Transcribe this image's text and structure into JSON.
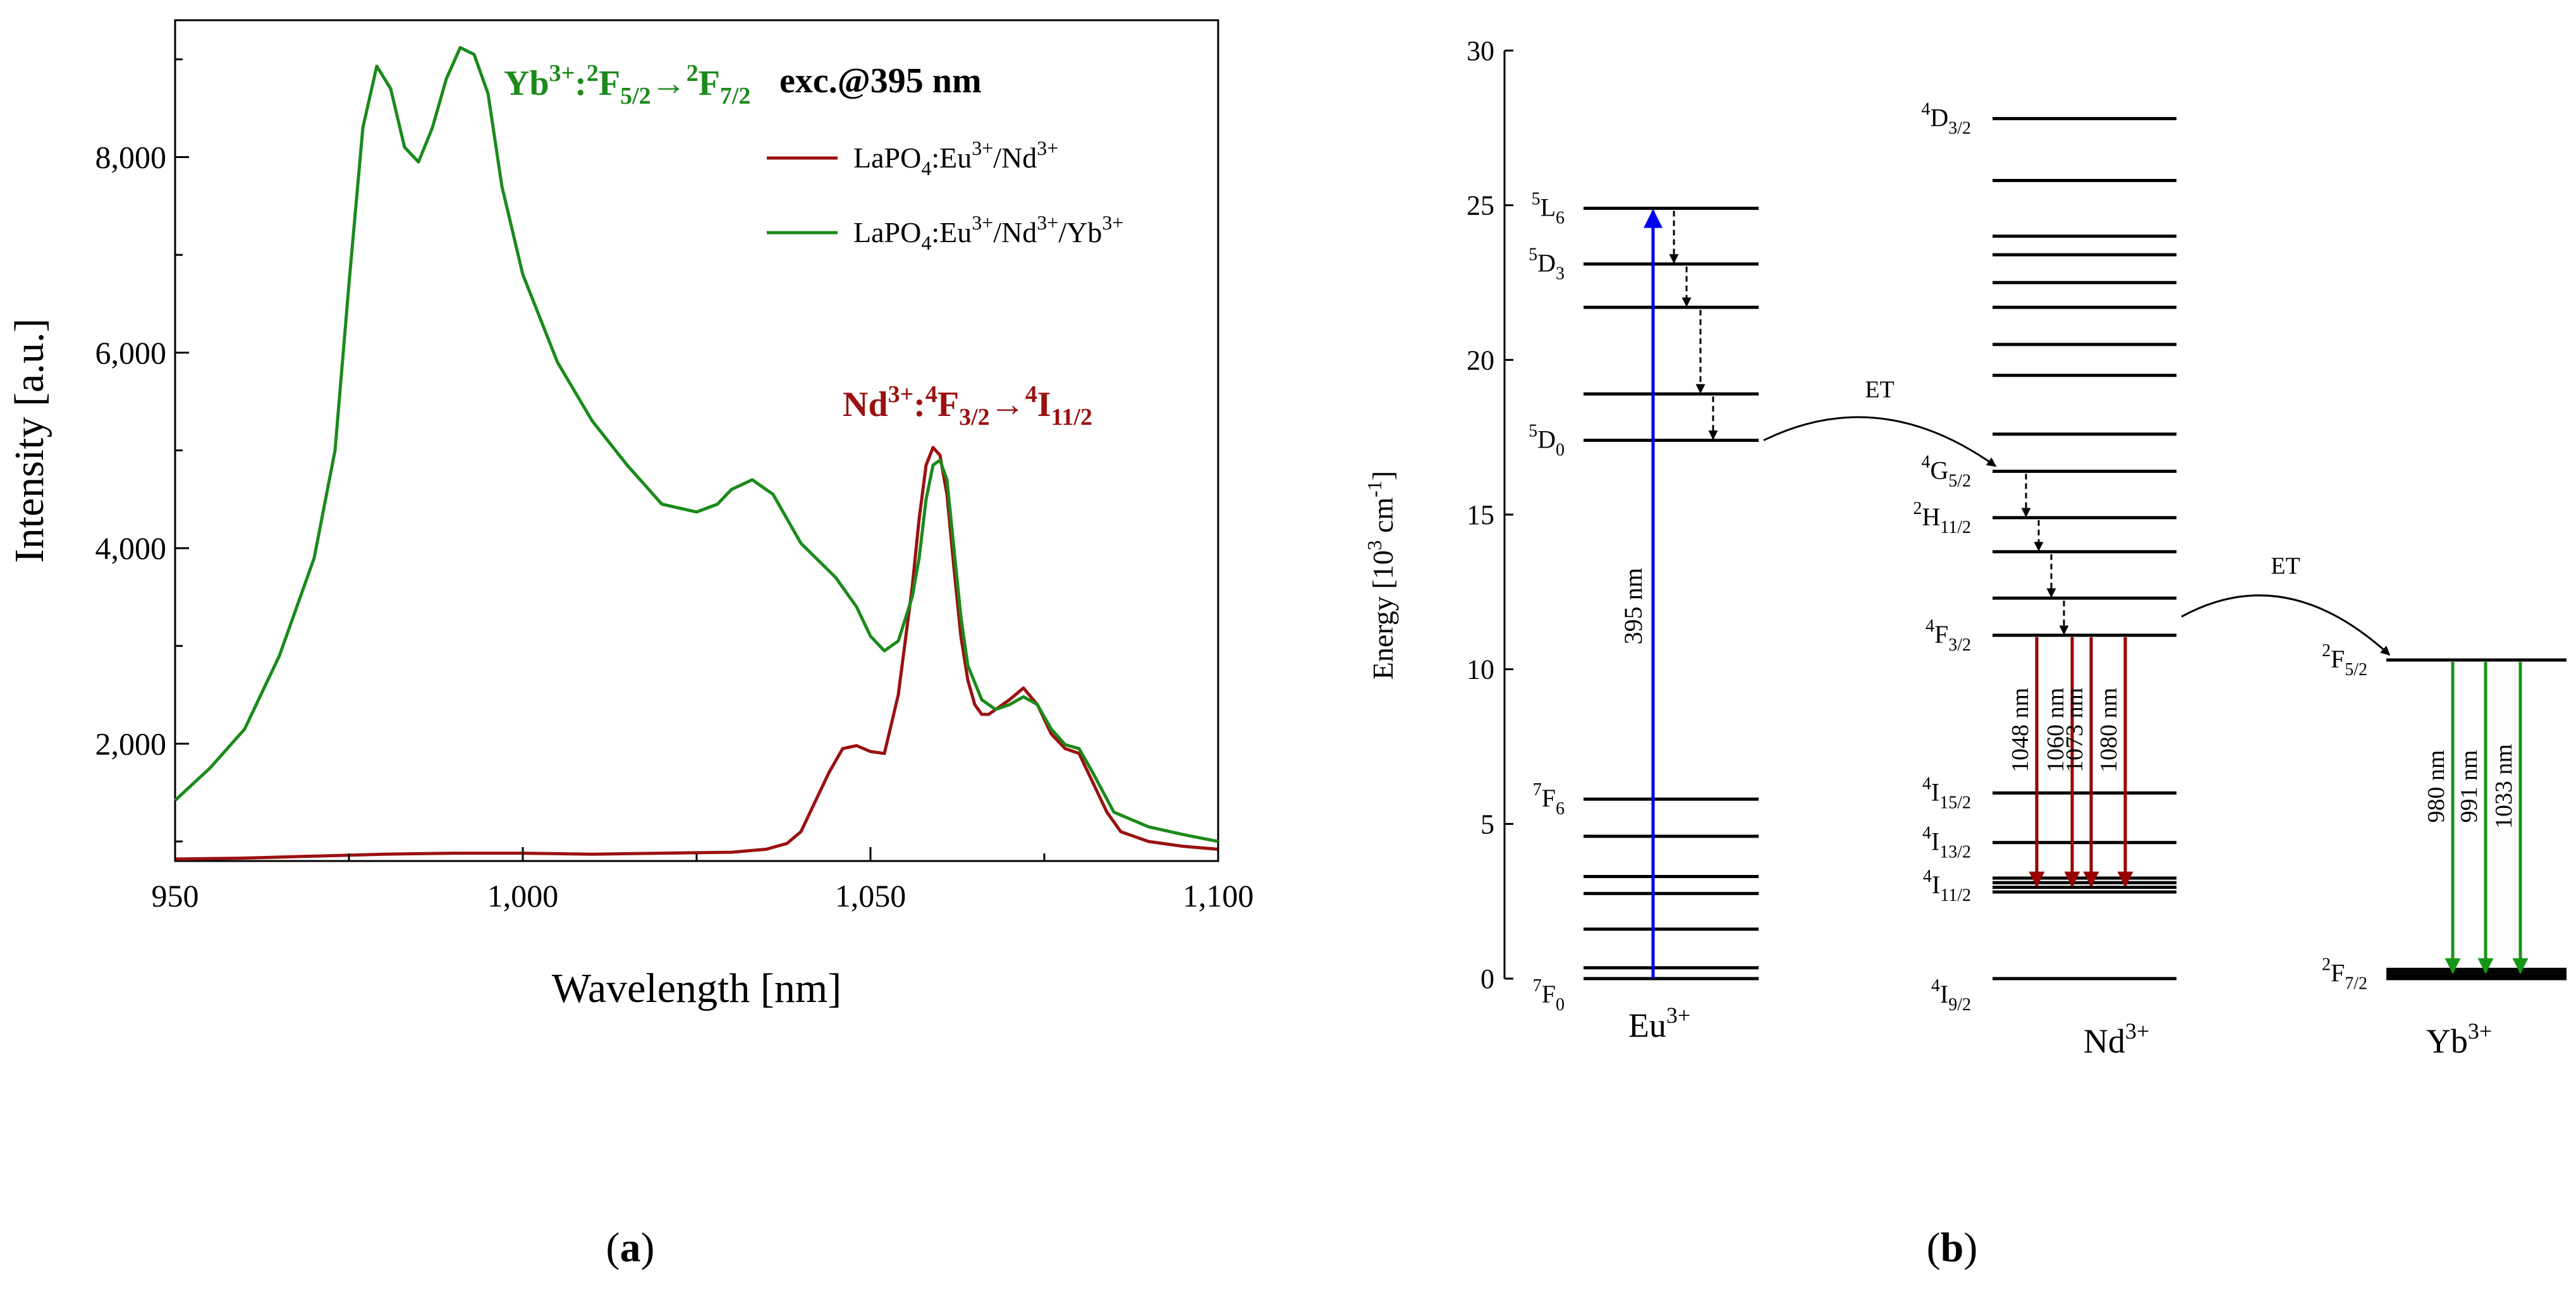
{
  "panel_a": {
    "label": "a",
    "annotations": {
      "yb": {
        "ion": "Yb",
        "ion_sup": "3+",
        "text": ":",
        "t1": "F",
        "t1_pre": "2",
        "t1_sub": "5/2",
        "arrow": "→",
        "t2": "F",
        "t2_pre": "2",
        "t2_sub": "7/2"
      },
      "nd": {
        "ion": "Nd",
        "ion_sup": "3+",
        "text": ":",
        "t1": "F",
        "t1_pre": "4",
        "t1_sub": "3/2",
        "arrow": "→",
        "t2": "I",
        "t2_pre": "4",
        "t2_sub": "11/2"
      },
      "exc": "exc.@395 nm"
    }
  },
  "panel_b": {
    "label": "b",
    "ylabel": "Energy [10",
    "ylabel_sup": "3",
    "ylabel_unit": " cm",
    "ylabel_sup2": "-1",
    "ylabel_end": "]",
    "yticks": [
      0,
      5,
      10,
      15,
      20,
      25,
      30
    ],
    "ylim": [
      0,
      30
    ],
    "ions": [
      {
        "name": "Eu",
        "sup": "3+"
      },
      {
        "name": "Nd",
        "sup": "3+"
      },
      {
        "name": "Yb",
        "sup": "3+"
      }
    ],
    "eu": {
      "levels": [
        0,
        0.35,
        1.6,
        2.75,
        3.3,
        4.6,
        5.8,
        17.4,
        18.9,
        21.7,
        23.1,
        24.9
      ],
      "labels": [
        {
          "pre": "5",
          "term": "L",
          "sub": "6",
          "e": 24.9
        },
        {
          "pre": "5",
          "term": "D",
          "sub": "3",
          "e": 23.1
        },
        {
          "pre": "5",
          "term": "D",
          "sub": "0",
          "e": 17.4
        },
        {
          "pre": "7",
          "term": "F",
          "sub": "6",
          "e": 5.8
        },
        {
          "pre": "7",
          "term": "F",
          "sub": "0",
          "e": 0
        }
      ],
      "excitation": {
        "from": 0,
        "to": 24.9,
        "label": "395 nm",
        "color": "#0000ee"
      },
      "relax": [
        [
          24.9,
          23.1
        ],
        [
          23.1,
          21.7
        ],
        [
          21.7,
          18.9
        ],
        [
          18.9,
          17.4
        ]
      ]
    },
    "nd": {
      "levels": [
        0,
        2.8,
        2.95,
        3.1,
        3.25,
        4.4,
        6.0,
        11.1,
        12.3,
        13.8,
        14.9,
        16.4,
        17.6,
        19.5,
        20.5,
        21.7,
        22.5,
        23.4,
        24.0,
        25.8,
        27.8
      ],
      "labels": [
        {
          "pre": "4",
          "term": "D",
          "sub": "3/2",
          "e": 27.8
        },
        {
          "pre": "4",
          "term": "G",
          "sub": "5/2",
          "e": 16.4
        },
        {
          "pre": "2",
          "term": "H",
          "sub": "11/2",
          "e": 14.9
        },
        {
          "pre": "4",
          "term": "F",
          "sub": "3/2",
          "e": 11.1
        },
        {
          "pre": "4",
          "term": "I",
          "sub": "15/2",
          "e": 6.0
        },
        {
          "pre": "4",
          "term": "I",
          "sub": "13/2",
          "e": 4.4
        },
        {
          "pre": "4",
          "term": "I",
          "sub": "11/2",
          "e": 3.0
        },
        {
          "pre": "4",
          "term": "I",
          "sub": "9/2",
          "e": 0
        }
      ],
      "relax": [
        [
          16.4,
          14.9
        ],
        [
          14.9,
          13.8
        ],
        [
          13.8,
          12.3
        ],
        [
          12.3,
          11.1
        ]
      ],
      "emissions": {
        "from": 11.1,
        "to": 3.0,
        "color": "#990000",
        "labels": [
          "1048 nm",
          "1060 nm",
          "1073 nm",
          "1080 nm"
        ]
      }
    },
    "yb": {
      "levels": [
        0,
        0.1,
        0.2,
        0.3,
        10.3
      ],
      "labels": [
        {
          "pre": "2",
          "term": "F",
          "sub": "5/2",
          "e": 10.3
        },
        {
          "pre": "2",
          "term": "F",
          "sub": "7/2",
          "e": 0.15
        }
      ],
      "emissions": {
        "from": 10.3,
        "to": 0.2,
        "color": "#169616",
        "labels": [
          "980 nm",
          "991 nm",
          "1033 nm"
        ]
      }
    },
    "transfers": [
      {
        "label": "ET",
        "from_ion": "eu",
        "from_e": 17.4,
        "to_ion": "nd",
        "to_e": 16.4
      },
      {
        "label": "ET",
        "from_ion": "nd",
        "from_e": 11.7,
        "to_ion": "yb",
        "to_e": 10.3
      }
    ]
  },
  "chart_data": {
    "type": "line",
    "xlabel": "Wavelength [nm]",
    "ylabel": "Intensity [a.u.]",
    "xlim": [
      950,
      1100
    ],
    "ylim": [
      800,
      9400
    ],
    "xticks": [
      950,
      1000,
      1050,
      1100
    ],
    "xtick_labels": [
      "950",
      "1,000",
      "1,050",
      "1,100"
    ],
    "yticks": [
      2000,
      4000,
      6000,
      8000
    ],
    "ytick_labels": [
      "2,000",
      "4,000",
      "6,000",
      "8,000"
    ],
    "grid": false,
    "legend_position": "top-right",
    "series": [
      {
        "name": "LaPO₄:Eu³⁺/Nd³⁺",
        "legend": {
          "parts": [
            "LaPO",
            "4",
            ":Eu",
            "3+",
            "/Nd",
            "3+"
          ]
        },
        "color": "#9b1111",
        "x": [
          950,
          960,
          970,
          980,
          990,
          1000,
          1010,
          1020,
          1030,
          1035,
          1038,
          1040,
          1042,
          1044,
          1046,
          1048,
          1050,
          1052,
          1054,
          1056,
          1057,
          1058,
          1059,
          1060,
          1061,
          1062,
          1063,
          1064,
          1065,
          1066,
          1067,
          1068,
          1070,
          1072,
          1074,
          1076,
          1078,
          1080,
          1082,
          1084,
          1086,
          1090,
          1095,
          1100
        ],
        "y": [
          820,
          830,
          850,
          870,
          880,
          880,
          870,
          880,
          890,
          920,
          980,
          1100,
          1400,
          1700,
          1950,
          1980,
          1920,
          1900,
          2500,
          3600,
          4300,
          4850,
          5030,
          4950,
          4550,
          3800,
          3100,
          2650,
          2400,
          2300,
          2300,
          2350,
          2450,
          2570,
          2400,
          2100,
          1950,
          1900,
          1600,
          1300,
          1100,
          1000,
          950,
          920
        ]
      },
      {
        "name": "LaPO₄:Eu³⁺/Nd³⁺/Yb³⁺",
        "legend": {
          "parts": [
            "LaPO",
            "4",
            ":Eu",
            "3+",
            "/Nd",
            "3+",
            "/Yb",
            "3+"
          ]
        },
        "color": "#1b8a1b",
        "x": [
          950,
          955,
          960,
          965,
          970,
          973,
          975,
          977,
          979,
          981,
          983,
          985,
          987,
          989,
          991,
          993,
          995,
          997,
          1000,
          1005,
          1010,
          1015,
          1020,
          1025,
          1028,
          1030,
          1033,
          1036,
          1040,
          1045,
          1048,
          1050,
          1052,
          1054,
          1056,
          1057,
          1058,
          1059,
          1060,
          1061,
          1062,
          1063,
          1064,
          1066,
          1068,
          1070,
          1072,
          1074,
          1076,
          1078,
          1080,
          1082,
          1085,
          1090,
          1095,
          1100
        ],
        "y": [
          1420,
          1750,
          2150,
          2900,
          3900,
          5000,
          6700,
          8300,
          8930,
          8700,
          8100,
          7950,
          8300,
          8800,
          9120,
          9050,
          8650,
          7700,
          6800,
          5900,
          5300,
          4850,
          4450,
          4370,
          4450,
          4600,
          4700,
          4550,
          4050,
          3700,
          3400,
          3100,
          2950,
          3050,
          3500,
          3900,
          4500,
          4850,
          4900,
          4700,
          4000,
          3300,
          2800,
          2450,
          2350,
          2400,
          2480,
          2400,
          2150,
          1990,
          1950,
          1700,
          1300,
          1150,
          1070,
          1000
        ]
      }
    ]
  }
}
